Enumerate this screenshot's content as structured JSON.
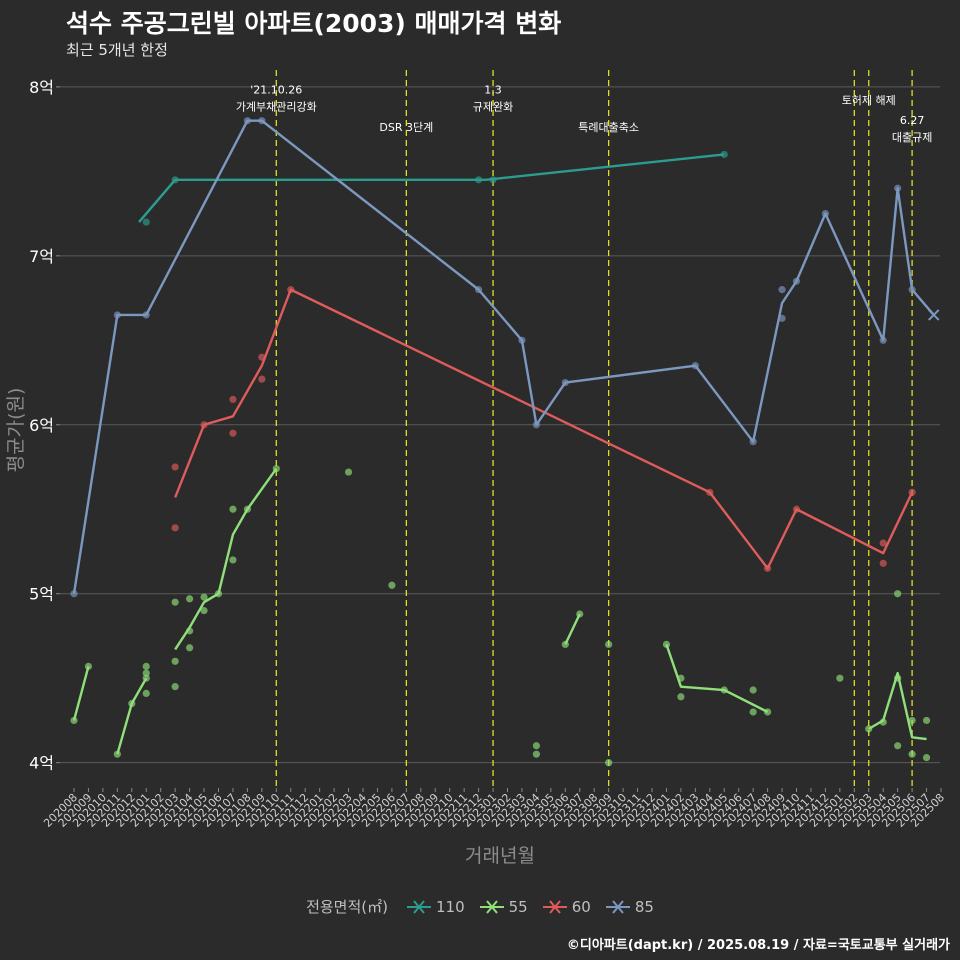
{
  "title": "석수 주공그린빌 아파트(2003) 매매가격 변화",
  "subtitle": "최근 5개년 한정",
  "caption": "©디아파트(dapt.kr) / 2025.08.19 / 자료=국토교통부 실거래가",
  "chart_data": {
    "type": "line",
    "xlabel": "거래년월",
    "ylabel": "평균가(원)",
    "ylim": [
      3.85,
      8.1
    ],
    "yticks": [
      4,
      5,
      6,
      7,
      8
    ],
    "ytick_labels": [
      "4억",
      "5억",
      "6억",
      "7억",
      "8억"
    ],
    "x_months": [
      "202008",
      "202009",
      "202010",
      "202011",
      "202012",
      "202101",
      "202102",
      "202103",
      "202104",
      "202105",
      "202106",
      "202107",
      "202108",
      "202109",
      "202110",
      "202111",
      "202112",
      "202201",
      "202202",
      "202203",
      "202204",
      "202205",
      "202206",
      "202207",
      "202208",
      "202209",
      "202210",
      "202211",
      "202212",
      "202301",
      "202302",
      "202303",
      "202304",
      "202305",
      "202306",
      "202307",
      "202308",
      "202309",
      "202310",
      "202311",
      "202312",
      "202401",
      "202402",
      "202403",
      "202404",
      "202405",
      "202406",
      "202407",
      "202408",
      "202409",
      "202410",
      "202411",
      "202412",
      "202501",
      "202502",
      "202503",
      "202504",
      "202505",
      "202506",
      "202507",
      "202508"
    ],
    "legend_title": "전용면적(㎡)",
    "series": [
      {
        "name": "110",
        "color": "#2a9d8f",
        "line": [
          [
            4.5,
            7.2
          ],
          [
            7,
            7.45
          ],
          [
            28.5,
            7.45
          ],
          [
            45,
            7.6
          ]
        ],
        "points": [
          [
            5,
            7.2
          ],
          [
            7,
            7.45
          ],
          [
            28,
            7.45
          ],
          [
            29,
            7.45
          ],
          [
            45,
            7.6
          ]
        ]
      },
      {
        "name": "55",
        "color": "#8fe07a",
        "line_segments": [
          [
            [
              0,
              4.25
            ],
            [
              1,
              4.57
            ]
          ],
          [
            [
              3,
              4.05
            ],
            [
              4,
              4.35
            ],
            [
              5,
              4.5
            ]
          ],
          [
            [
              7,
              4.67
            ],
            [
              8,
              4.8
            ],
            [
              9,
              4.95
            ],
            [
              10,
              5.0
            ],
            [
              11,
              5.35
            ],
            [
              12,
              5.5
            ],
            [
              14,
              5.74
            ]
          ],
          [
            [
              34,
              4.7
            ],
            [
              35,
              4.88
            ]
          ],
          [
            [
              41,
              4.7
            ],
            [
              42,
              4.45
            ],
            [
              45,
              4.43
            ],
            [
              48,
              4.3
            ]
          ],
          [
            [
              55,
              4.2
            ],
            [
              56,
              4.25
            ],
            [
              57,
              4.53
            ],
            [
              58,
              4.15
            ],
            [
              59,
              4.14
            ]
          ]
        ],
        "points": [
          [
            0,
            4.25
          ],
          [
            1,
            4.57
          ],
          [
            3,
            4.05
          ],
          [
            4,
            4.35
          ],
          [
            5,
            4.57
          ],
          [
            5,
            4.53
          ],
          [
            5,
            4.5
          ],
          [
            5,
            4.41
          ],
          [
            7,
            4.95
          ],
          [
            7,
            4.6
          ],
          [
            7,
            4.45
          ],
          [
            8,
            4.97
          ],
          [
            8,
            4.78
          ],
          [
            8,
            4.68
          ],
          [
            9,
            4.98
          ],
          [
            9,
            4.9
          ],
          [
            10,
            5.0
          ],
          [
            11,
            5.5
          ],
          [
            11,
            5.2
          ],
          [
            12,
            5.5
          ],
          [
            14,
            5.74
          ],
          [
            19,
            5.72
          ],
          [
            22,
            5.05
          ],
          [
            32,
            4.1
          ],
          [
            32,
            4.05
          ],
          [
            34,
            4.7
          ],
          [
            35,
            4.88
          ],
          [
            37,
            4.7
          ],
          [
            37,
            4.0
          ],
          [
            41,
            4.7
          ],
          [
            42,
            4.5
          ],
          [
            42,
            4.39
          ],
          [
            45,
            4.43
          ],
          [
            47,
            4.43
          ],
          [
            47,
            4.3
          ],
          [
            48,
            4.3
          ],
          [
            53,
            4.5
          ],
          [
            55,
            4.2
          ],
          [
            56,
            4.24
          ],
          [
            57,
            4.5
          ],
          [
            57,
            4.1
          ],
          [
            57,
            5.0
          ],
          [
            58,
            4.25
          ],
          [
            58,
            4.05
          ],
          [
            59,
            4.25
          ],
          [
            59,
            4.03
          ]
        ]
      },
      {
        "name": "60",
        "color": "#e05b5b",
        "line": [
          [
            7,
            5.57
          ],
          [
            9,
            6.0
          ],
          [
            11,
            6.05
          ],
          [
            13,
            6.35
          ],
          [
            15,
            6.8
          ],
          [
            44,
            5.6
          ],
          [
            48,
            5.15
          ],
          [
            50,
            5.5
          ],
          [
            56,
            5.24
          ],
          [
            58,
            5.6
          ]
        ],
        "points": [
          [
            7,
            5.75
          ],
          [
            7,
            5.39
          ],
          [
            9,
            6.0
          ],
          [
            11,
            6.15
          ],
          [
            11,
            5.95
          ],
          [
            13,
            6.4
          ],
          [
            13,
            6.27
          ],
          [
            15,
            6.8
          ],
          [
            44,
            5.6
          ],
          [
            48,
            5.15
          ],
          [
            50,
            5.5
          ],
          [
            56,
            5.3
          ],
          [
            56,
            5.18
          ],
          [
            58,
            5.6
          ]
        ]
      },
      {
        "name": "85",
        "color": "#7d98c0",
        "line": [
          [
            0,
            5.0
          ],
          [
            3,
            6.65
          ],
          [
            5,
            6.65
          ],
          [
            12,
            7.8
          ],
          [
            13,
            7.8
          ],
          [
            28,
            6.8
          ],
          [
            31,
            6.5
          ],
          [
            32,
            6.0
          ],
          [
            34,
            6.25
          ],
          [
            43,
            6.35
          ],
          [
            47,
            5.9
          ],
          [
            49,
            6.72
          ],
          [
            50,
            6.85
          ],
          [
            52,
            7.25
          ],
          [
            56,
            6.5
          ],
          [
            57,
            7.4
          ],
          [
            58,
            6.8
          ],
          [
            59.5,
            6.65
          ]
        ],
        "points": [
          [
            0,
            5.0
          ],
          [
            3,
            6.65
          ],
          [
            5,
            6.65
          ],
          [
            12,
            7.8
          ],
          [
            13,
            7.8
          ],
          [
            28,
            6.8
          ],
          [
            31,
            6.5
          ],
          [
            32,
            6.0
          ],
          [
            34,
            6.25
          ],
          [
            43,
            6.35
          ],
          [
            47,
            5.9
          ],
          [
            49,
            6.8
          ],
          [
            49,
            6.63
          ],
          [
            50,
            6.85
          ],
          [
            52,
            7.25
          ],
          [
            56,
            6.5
          ],
          [
            57,
            7.4
          ],
          [
            58,
            6.8
          ]
        ],
        "x_markers": [
          [
            59.5,
            6.65
          ]
        ]
      }
    ],
    "vlines": [
      {
        "x": 14,
        "label": "'21.10.26\n가계부채관리강화",
        "label_y": 7.96
      },
      {
        "x": 23,
        "label": "DSR 3단계",
        "label_y": 7.74
      },
      {
        "x": 29,
        "label": "1.3\n규제완화",
        "label_y": 7.96
      },
      {
        "x": 37,
        "label": "특례대출축소",
        "label_y": 7.74
      },
      {
        "x": 54,
        "label": "",
        "label_y": 0
      },
      {
        "x": 55,
        "label": "토허제 해제",
        "label_y": 7.9
      },
      {
        "x": 58,
        "label": "6.27\n대출규제",
        "label_y": 7.78
      }
    ]
  }
}
